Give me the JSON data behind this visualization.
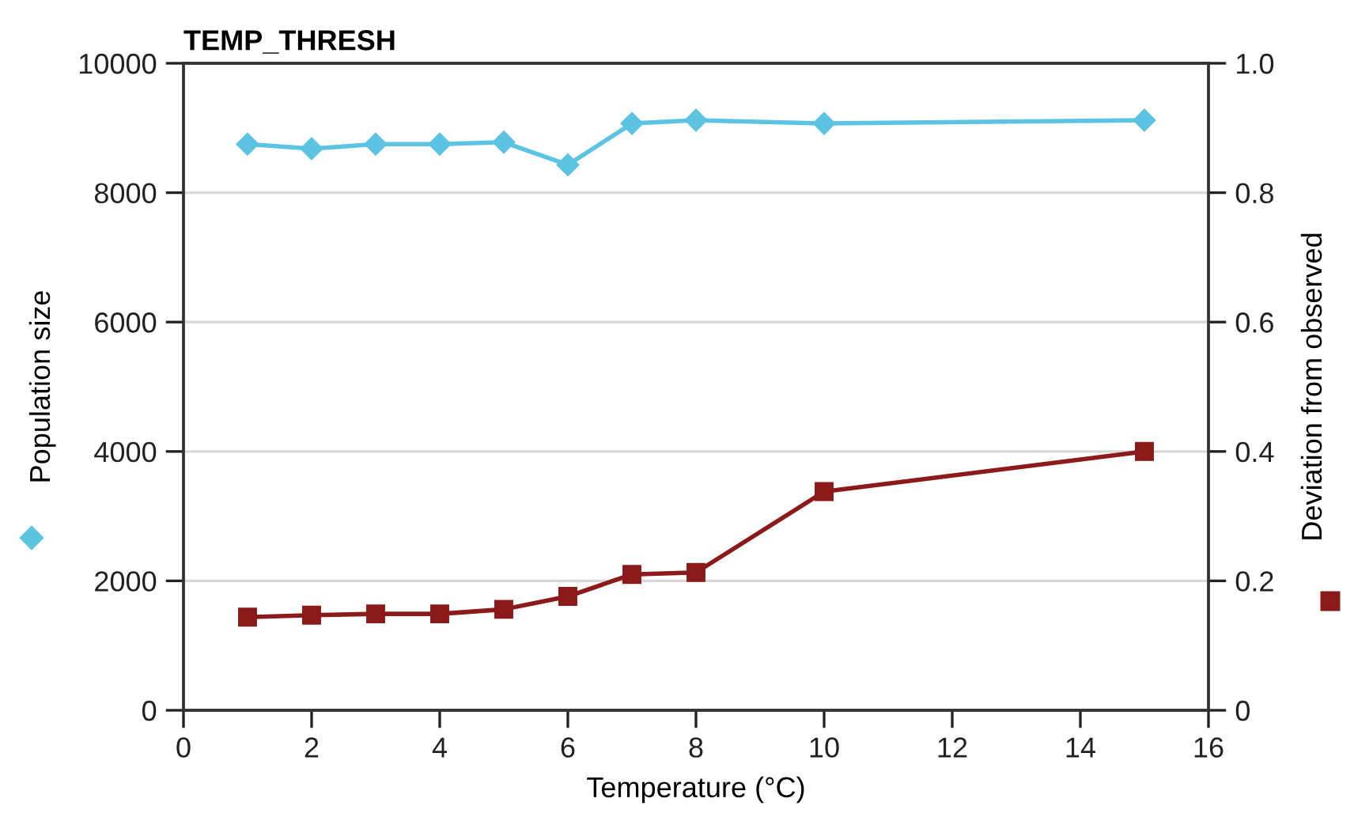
{
  "chart_data": {
    "type": "line",
    "title": "TEMP_THRESH",
    "xlabel": "Temperature (°C)",
    "ylabel": "Population size",
    "y2label": "Deviation from observed",
    "x": [
      1,
      2,
      3,
      4,
      5,
      6,
      7,
      8,
      10,
      15
    ],
    "series": [
      {
        "color": "#5cc3e3",
        "marker": "diamond",
        "values": [
          8750,
          8680,
          8750,
          8750,
          8780,
          8430,
          9070,
          9120,
          9070,
          9120
        ]
      },
      {
        "color": "#8b1a1a",
        "marker": "square",
        "axis": "y2",
        "values": [
          0.144,
          0.147,
          0.149,
          0.149,
          0.156,
          0.176,
          0.21,
          0.213,
          0.338,
          0.4
        ]
      }
    ],
    "xlim": [
      0,
      16
    ],
    "xticks": [
      0,
      2,
      4,
      6,
      8,
      10,
      12,
      14,
      16
    ],
    "ylim": [
      0,
      10000
    ],
    "yticks": [
      0,
      2000,
      4000,
      6000,
      8000,
      10000
    ],
    "y2lim": [
      0,
      1.0
    ],
    "y2ticks": [
      {
        "value": 0,
        "label": "0"
      },
      {
        "value": 0.2,
        "label": "0.2"
      },
      {
        "value": 0.4,
        "label": "0.4"
      },
      {
        "value": 0.6,
        "label": "0.6"
      },
      {
        "value": 0.8,
        "label": "0.8"
      },
      {
        "value": 1.0,
        "label": "1.0"
      }
    ],
    "grid": "y",
    "legend": false,
    "line_style": "solid"
  }
}
